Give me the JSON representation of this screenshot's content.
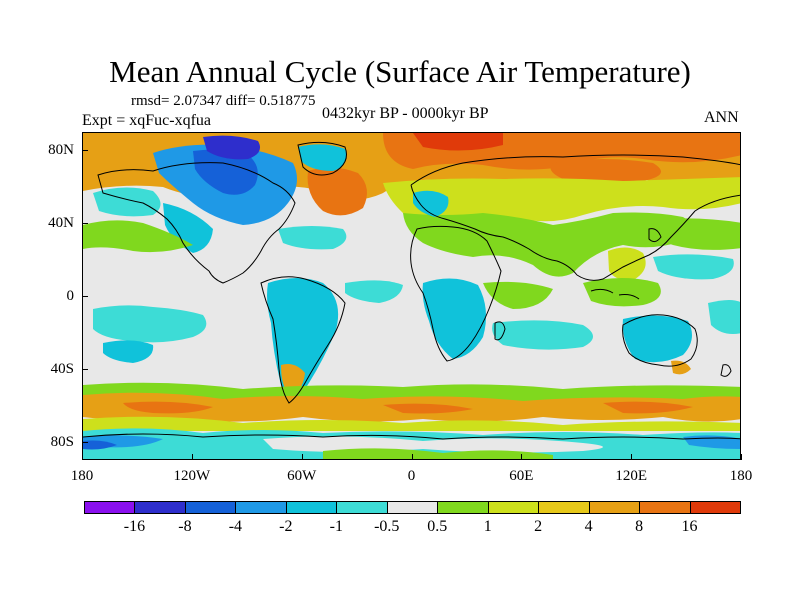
{
  "title": "Mean Annual Cycle (Surface Air Temperature)",
  "stats": "rmsd= 2.07347 diff= 0.518775",
  "experiment": "Expt = xqFuc-xqfua",
  "period": "0432kyr BP - 0000kyr BP",
  "season": "ANN",
  "map": {
    "projection": "cylindrical-equidistant",
    "lat_ticks": [
      {
        "value": 80,
        "label": "80N"
      },
      {
        "value": 40,
        "label": "40N"
      },
      {
        "value": 0,
        "label": "0"
      },
      {
        "value": -40,
        "label": "40S"
      },
      {
        "value": -80,
        "label": "80S"
      }
    ],
    "lon_ticks": [
      {
        "value": -180,
        "label": "180"
      },
      {
        "value": -120,
        "label": "120W"
      },
      {
        "value": -60,
        "label": "60W"
      },
      {
        "value": 0,
        "label": "0"
      },
      {
        "value": 60,
        "label": "60E"
      },
      {
        "value": 120,
        "label": "120E"
      },
      {
        "value": 180,
        "label": "180"
      }
    ]
  },
  "colorbar": {
    "colors": [
      "#8a10ee",
      "#2e2ecc",
      "#1561d8",
      "#1f99e6",
      "#10c2da",
      "#3ddcd6",
      "#e8e8e8",
      "#80d81e",
      "#cde01c",
      "#e6c81a",
      "#e6a015",
      "#e87412",
      "#e03a0a"
    ],
    "labels": [
      "-16",
      "-8",
      "-4",
      "-2",
      "-1",
      "-0.5",
      "0.5",
      "1",
      "2",
      "4",
      "8",
      "16"
    ]
  },
  "colors": {
    "strong_warm": "#e87412",
    "warm": "#e6a015",
    "mild_warm": "#cde01c",
    "slight_warm": "#80d81e",
    "slight_cool": "#3ddcd6",
    "cool": "#10c2da",
    "cold": "#1f99e6",
    "colder": "#1561d8",
    "coldest": "#2e2ecc",
    "neutral": "#e8e8e8"
  }
}
